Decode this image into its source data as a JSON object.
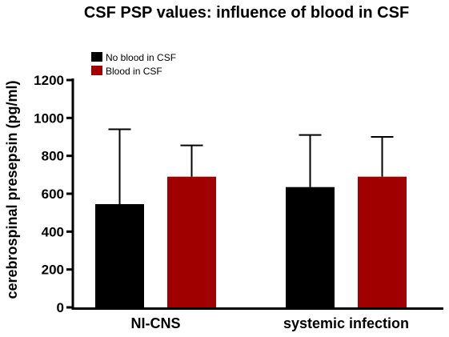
{
  "chart_data": {
    "type": "bar",
    "title": "CSF PSP values: influence of blood in CSF",
    "xlabel": "",
    "ylabel": "cerebrospinal presepsin (pg/ml)",
    "categories": [
      "NI-CNS",
      "systemic infection"
    ],
    "ylim": [
      0,
      1200
    ],
    "yticks": [
      0,
      200,
      400,
      600,
      800,
      1000,
      1200
    ],
    "legend_position": "top-left",
    "grid": false,
    "error_bars": "one-sided upper",
    "series": [
      {
        "name": "No blood in CSF",
        "color": "#000000",
        "values": [
          545,
          635
        ],
        "error": [
          395,
          275
        ]
      },
      {
        "name": "Blood in CSF",
        "color": "#a00000",
        "values": [
          690,
          690
        ],
        "error": [
          165,
          210
        ]
      }
    ]
  }
}
